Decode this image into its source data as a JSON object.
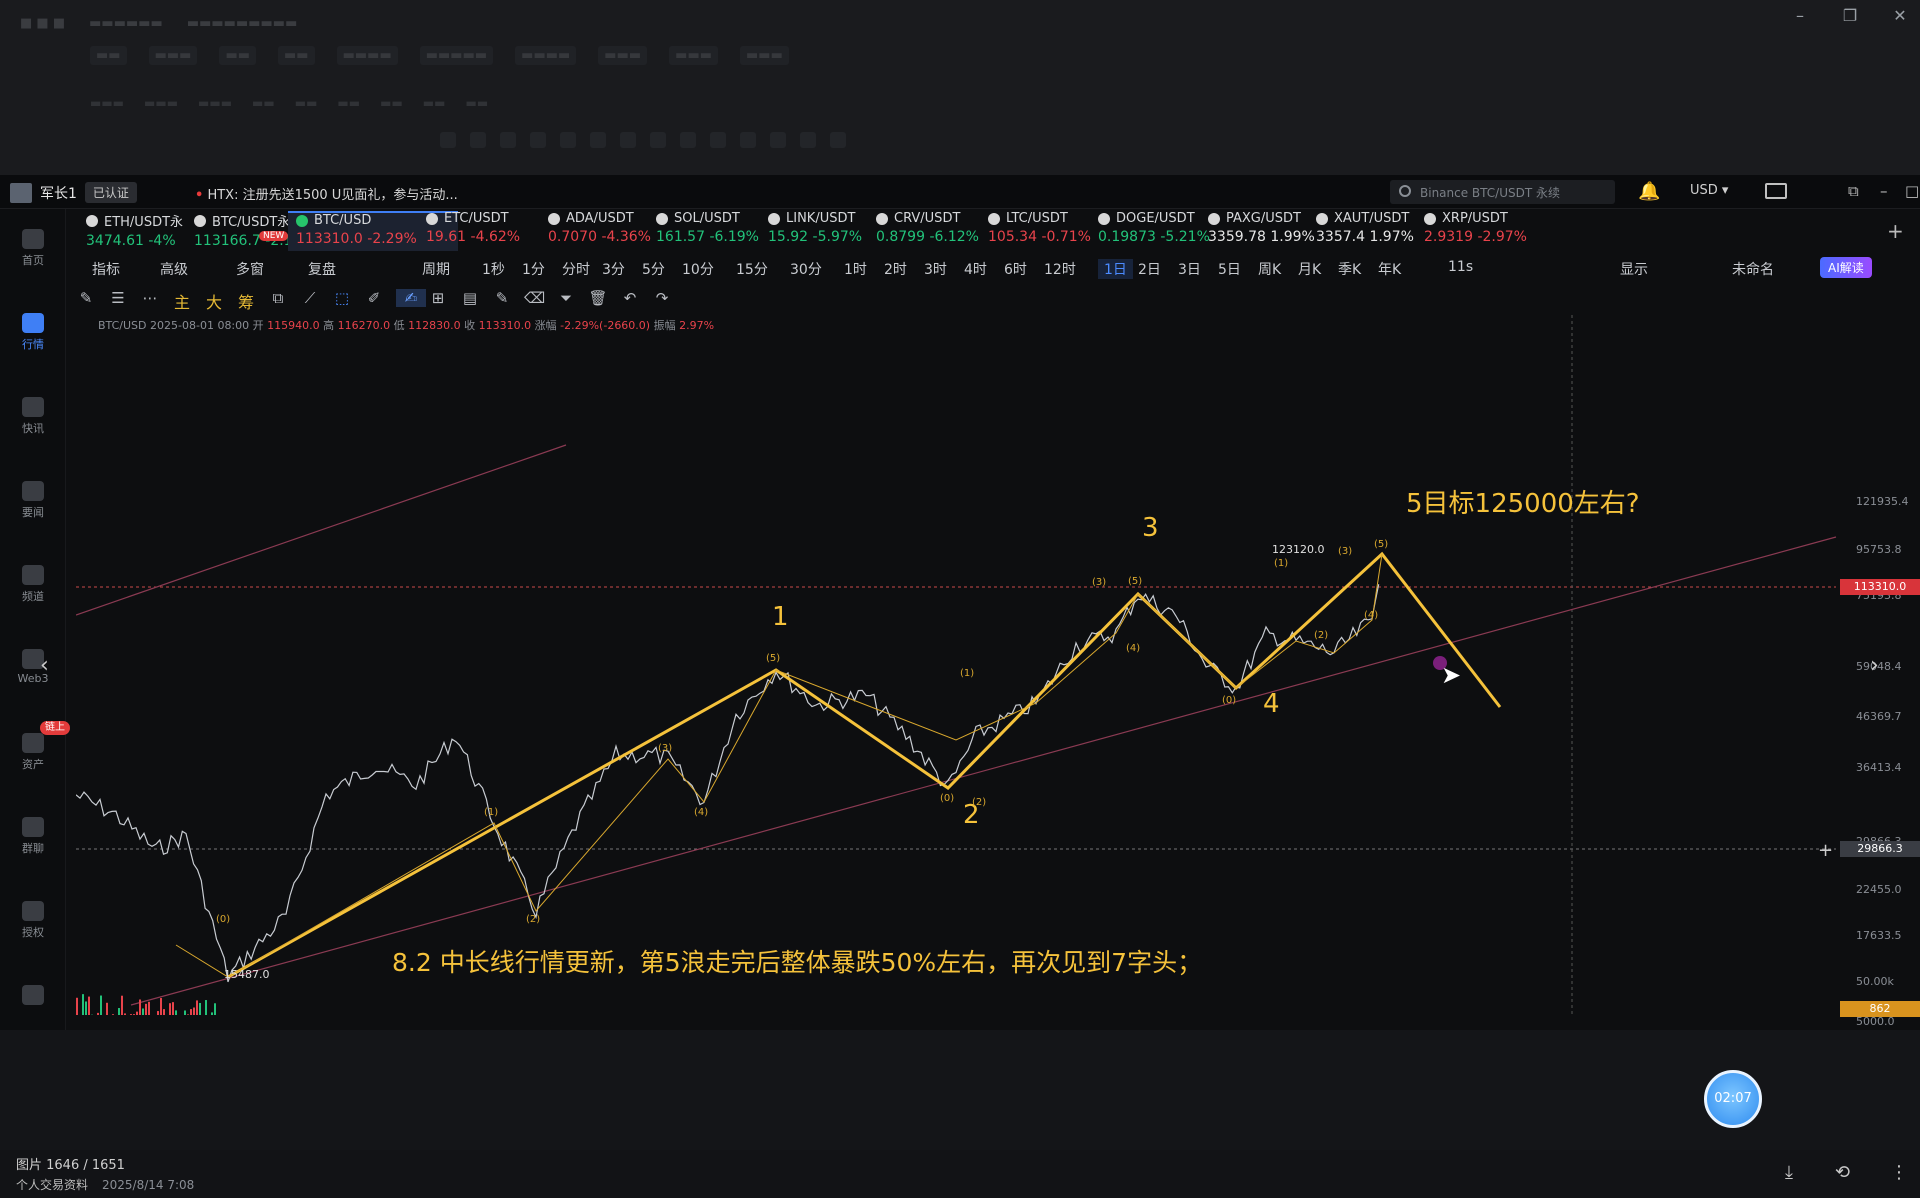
{
  "user": {
    "name": "军长1",
    "verified": "已认证"
  },
  "notice": {
    "bullet": "•",
    "text": "HTX: 注册先送1500 U见面礼，参与活动..."
  },
  "search": {
    "placeholder": "Binance BTC/USDT 永续"
  },
  "currency": "USD",
  "tickers": [
    {
      "name": "ETH/USDT永",
      "price": "3474.61",
      "change": "-4%",
      "dir": "up"
    },
    {
      "name": "BTC/USDT永",
      "price": "113166.7",
      "change": "-2.19",
      "dir": "up"
    },
    {
      "name": "BTC/USD",
      "price": "113310.0",
      "change": "-2.29%",
      "dir": "down",
      "selected": true
    },
    {
      "name": "ETC/USDT",
      "price": "19.61",
      "change": "-4.62%",
      "dir": "down"
    },
    {
      "name": "ADA/USDT",
      "price": "0.7070",
      "change": "-4.36%",
      "dir": "down"
    },
    {
      "name": "SOL/USDT",
      "price": "161.57",
      "change": "-6.19%",
      "dir": "up"
    },
    {
      "name": "LINK/USDT",
      "price": "15.92",
      "change": "-5.97%",
      "dir": "up"
    },
    {
      "name": "CRV/USDT",
      "price": "0.8799",
      "change": "-6.12%",
      "dir": "up"
    },
    {
      "name": "LTC/USDT",
      "price": "105.34",
      "change": "-0.71%",
      "dir": "down"
    },
    {
      "name": "DOGE/USDT",
      "price": "0.19873",
      "change": "-5.21%",
      "dir": "up"
    },
    {
      "name": "PAXG/USDT",
      "price": "3359.78",
      "change": "1.99%",
      "dir": "neutral"
    },
    {
      "name": "XAUT/USDT",
      "price": "3357.4",
      "change": "1.97%",
      "dir": "neutral"
    },
    {
      "name": "XRP/USDT",
      "price": "2.9319",
      "change": "-2.97%",
      "dir": "down"
    }
  ],
  "new_badge": "NEW",
  "toolbar": {
    "left": [
      "指标",
      "高级",
      "多窗",
      "复盘",
      "周期"
    ],
    "periods": [
      "1秒",
      "1分",
      "分时",
      "3分",
      "5分",
      "10分",
      "15分",
      "30分",
      "1时",
      "2时",
      "3时",
      "4时",
      "6时",
      "12时",
      "1日",
      "2日",
      "3日",
      "5日",
      "周K",
      "月K",
      "季K",
      "年K"
    ],
    "active_period": "1日",
    "right": [
      "11s",
      "显示",
      "未命名"
    ],
    "ai": "AI解读"
  },
  "drawtools": {
    "chars": [
      "主",
      "大",
      "筹"
    ]
  },
  "ohlc": {
    "symbol": "BTC/USD",
    "date": "2025-08-01 08:00",
    "open_l": "开",
    "open": "115940.0",
    "high_l": "高",
    "high": "116270.0",
    "low_l": "低",
    "low": "112830.0",
    "close_l": "收",
    "close": "113310.0",
    "chg_l": "涨幅",
    "chg": "-2.29%(-2660.0)",
    "amp_l": "振幅",
    "amp": "2.97%"
  },
  "nav": [
    {
      "label": "首页",
      "icon": "home-icon"
    },
    {
      "label": "行情",
      "icon": "chart-icon",
      "active": true
    },
    {
      "label": "快讯",
      "icon": "news-icon"
    },
    {
      "label": "要闻",
      "icon": "doc-icon"
    },
    {
      "label": "频道",
      "icon": "channel-icon"
    },
    {
      "label": "Web3",
      "icon": "web3-icon"
    },
    {
      "label": "资产",
      "icon": "wallet-icon",
      "badge": "链上"
    },
    {
      "label": "群聊",
      "icon": "chat-icon"
    },
    {
      "label": "授权",
      "icon": "auth-icon"
    },
    {
      "label": "",
      "icon": "apps-icon"
    }
  ],
  "yaxis": [
    "121935.4",
    "95753.8",
    "75193.8",
    "59048.4",
    "46369.7",
    "36413.4",
    "29866.3",
    "22455.0",
    "17633.5",
    "50.00k",
    "5000.0"
  ],
  "price_tag": "113310.0",
  "cross_tag": "29866.3",
  "vol_tag": "862",
  "annotations": {
    "target": "5目标125000左右?",
    "wave1": "1",
    "wave2": "2",
    "wave3": "3",
    "wave4": "4",
    "low_label": "15487.0",
    "high_label": "123120.0",
    "caption": "8.2 中长线行情更新，第5浪走完后整体暴跌50%左右，再次见到7字头；",
    "sub": [
      "(0)",
      "(1)",
      "(2)",
      "(3)",
      "(4)",
      "(5)"
    ]
  },
  "status": {
    "line1": "图片 1646 / 1651",
    "line2a": "个人交易资料",
    "line2b": "2025/8/14 7:08"
  },
  "timer": "02:07",
  "colors": {
    "accent": "#3f7ff5",
    "up": "#22c27a",
    "down": "#e8434b",
    "wave": "#f5c23b"
  }
}
